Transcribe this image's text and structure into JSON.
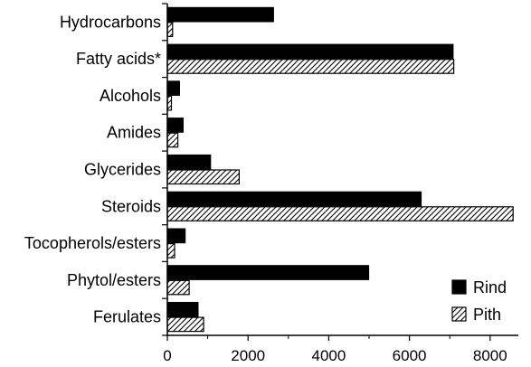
{
  "chart_data": {
    "type": "bar",
    "orientation": "horizontal",
    "categories": [
      "Hydrocarbons",
      "Fatty acids*",
      "Alcohols",
      "Amides",
      "Glycerides",
      "Steroids",
      "Tocopherols/esters",
      "Phytol/esters",
      "Ferulates"
    ],
    "series": [
      {
        "name": "Rind",
        "fill": "solid",
        "color": "#000000",
        "values": [
          2630,
          7080,
          300,
          390,
          1070,
          6290,
          440,
          4990,
          760
        ]
      },
      {
        "name": "Pith",
        "fill": "hatched",
        "color": "#000000",
        "values": [
          130,
          7100,
          100,
          260,
          1780,
          8570,
          180,
          540,
          900
        ]
      }
    ],
    "xticks": [
      "0",
      "2000",
      "4000",
      "6000",
      "8000"
    ],
    "xlim": [
      0,
      8700
    ],
    "title": "",
    "xlabel": "",
    "ylabel": "",
    "grid": false,
    "legend_position": "bottom-right"
  }
}
